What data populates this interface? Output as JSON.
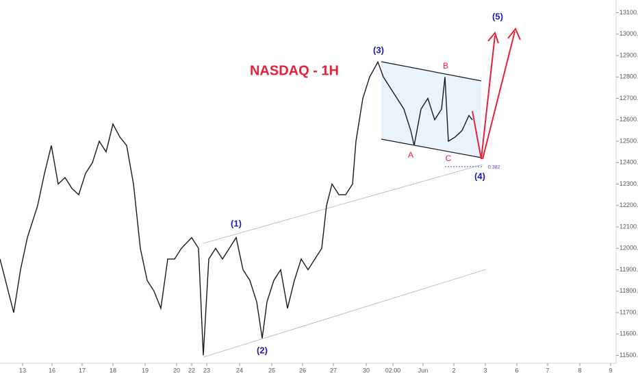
{
  "chart_data": {
    "type": "line",
    "title": "NASDAQ - 1H",
    "x": [
      0,
      4,
      10,
      15,
      20,
      27.5,
      32.5,
      37.5,
      42.5,
      47.5,
      52.5,
      57.5,
      62.5,
      67.5,
      72.5,
      77.5,
      82.5,
      87.5,
      92.5,
      97.5,
      102.5,
      107.5,
      112.5,
      117.5,
      122.5,
      127.5,
      132.5,
      140,
      145,
      148.5,
      152.5,
      157.5,
      162.5,
      167.5,
      172.5,
      177.5,
      182.5,
      187.5,
      191.5,
      195,
      200,
      205,
      210,
      215,
      220,
      225,
      230,
      235,
      238.5,
      242.5,
      247.5,
      252.5,
      257.5,
      260,
      265,
      270,
      276,
      280,
      285,
      290,
      295,
      300,
      302.5,
      307.5,
      312.5,
      317.5,
      322.5,
      325,
      327.5,
      332.5,
      337.5,
      342.5,
      345
    ],
    "series": [
      {
        "name": "NASDAQ",
        "color": "#131722",
        "values": [
          11950,
          11850,
          11700,
          11900,
          12050,
          12200,
          12350,
          12480,
          12300,
          12330,
          12280,
          12250,
          12350,
          12400,
          12500,
          12450,
          12580,
          12520,
          12480,
          12300,
          12000,
          11850,
          11800,
          11720,
          11950,
          11950,
          12000,
          12050,
          12000,
          11500,
          11950,
          12000,
          11950,
          12000,
          12050,
          11900,
          11850,
          11750,
          11580,
          11750,
          11850,
          11900,
          11720,
          11850,
          11950,
          11900,
          11950,
          12000,
          12200,
          12300,
          12250,
          12250,
          12300,
          12500,
          12700,
          12800,
          12870,
          12800,
          12750,
          12700,
          12650,
          12550,
          12480,
          12650,
          12700,
          12600,
          12650,
          12800,
          12500,
          12520,
          12550,
          12620,
          12600
        ]
      }
    ],
    "xlim": [
      0,
      450
    ],
    "xticks": [
      {
        "value": 16.5,
        "label": "13"
      },
      {
        "value": 38,
        "label": "16"
      },
      {
        "value": 60,
        "label": "17"
      },
      {
        "value": 82.5,
        "label": "18"
      },
      {
        "value": 106,
        "label": "19"
      },
      {
        "value": 129,
        "label": "20"
      },
      {
        "value": 140,
        "label": "22"
      },
      {
        "value": 151,
        "label": "23"
      },
      {
        "value": 175,
        "label": "24"
      },
      {
        "value": 198.5,
        "label": "25"
      },
      {
        "value": 221,
        "label": "26"
      },
      {
        "value": 243.5,
        "label": "27"
      },
      {
        "value": 267.5,
        "label": "30"
      },
      {
        "value": 287,
        "label": "02:00"
      },
      {
        "value": 309,
        "label": "Jun"
      },
      {
        "value": 331.5,
        "label": "2"
      },
      {
        "value": 354.5,
        "label": "3"
      },
      {
        "value": 377.5,
        "label": "6"
      },
      {
        "value": 400,
        "label": "7"
      },
      {
        "value": 423.5,
        "label": "8"
      },
      {
        "value": 446,
        "label": "9"
      }
    ],
    "ylim": [
      11460,
      13140
    ],
    "yticks": [
      {
        "value": 11500,
        "label": "11500.0"
      },
      {
        "value": 11600,
        "label": "11600.0"
      },
      {
        "value": 11700,
        "label": "11700.0"
      },
      {
        "value": 11800,
        "label": "11800.0"
      },
      {
        "value": 11900,
        "label": "11900.0"
      },
      {
        "value": 12000,
        "label": "12000.0"
      },
      {
        "value": 12100,
        "label": "12100.0"
      },
      {
        "value": 12200,
        "label": "12200.0"
      },
      {
        "value": 12300,
        "label": "12300.0"
      },
      {
        "value": 12400,
        "label": "12400.0"
      },
      {
        "value": 12500,
        "label": "12500.0"
      },
      {
        "value": 12600,
        "label": "12600.0"
      },
      {
        "value": 12700,
        "label": "12700.0"
      },
      {
        "value": 12800,
        "label": "12800.0"
      },
      {
        "value": 12900,
        "label": "12900.0"
      },
      {
        "value": 13000,
        "label": "13000.0"
      },
      {
        "value": 13100,
        "label": "13100.0"
      }
    ],
    "annotations": [
      "(1)",
      "(2)",
      "(3)",
      "(4)",
      "(5)",
      "A",
      "B",
      "C",
      "0.382"
    ]
  }
}
